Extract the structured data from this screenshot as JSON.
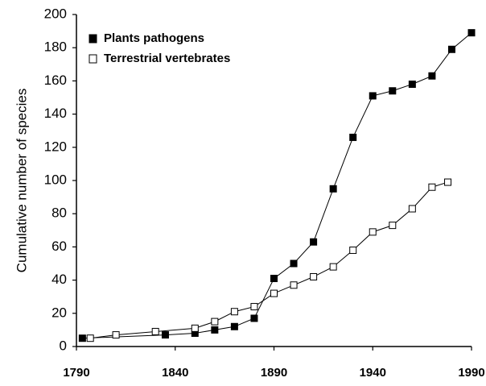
{
  "chart_data": {
    "type": "line",
    "ylabel": "Cumulative number of species",
    "xlim": [
      1790,
      1990
    ],
    "xticks": [
      1790,
      1840,
      1890,
      1940,
      1990
    ],
    "ylim": [
      0,
      200
    ],
    "yticks": [
      0,
      20,
      40,
      60,
      80,
      100,
      120,
      140,
      160,
      180,
      200
    ],
    "legend": "upper left",
    "series": [
      {
        "name": "Plants pathogens",
        "color": "#000000",
        "marker": "filled-square",
        "x": [
          1793,
          1835,
          1850,
          1860,
          1870,
          1880,
          1890,
          1900,
          1910,
          1920,
          1930,
          1940,
          1950,
          1960,
          1970,
          1980,
          1990
        ],
        "values": [
          5,
          7,
          8,
          10,
          12,
          17,
          41,
          50,
          63,
          95,
          126,
          151,
          154,
          158,
          163,
          179,
          189
        ]
      },
      {
        "name": "Terrestrial vertebrates",
        "color": "#000000",
        "marker": "open-square",
        "x": [
          1797,
          1810,
          1830,
          1850,
          1860,
          1870,
          1880,
          1890,
          1900,
          1910,
          1920,
          1930,
          1940,
          1950,
          1960,
          1970,
          1978
        ],
        "values": [
          5,
          7,
          9,
          11,
          15,
          21,
          24,
          32,
          37,
          42,
          48,
          58,
          69,
          73,
          83,
          96,
          99
        ]
      }
    ]
  }
}
